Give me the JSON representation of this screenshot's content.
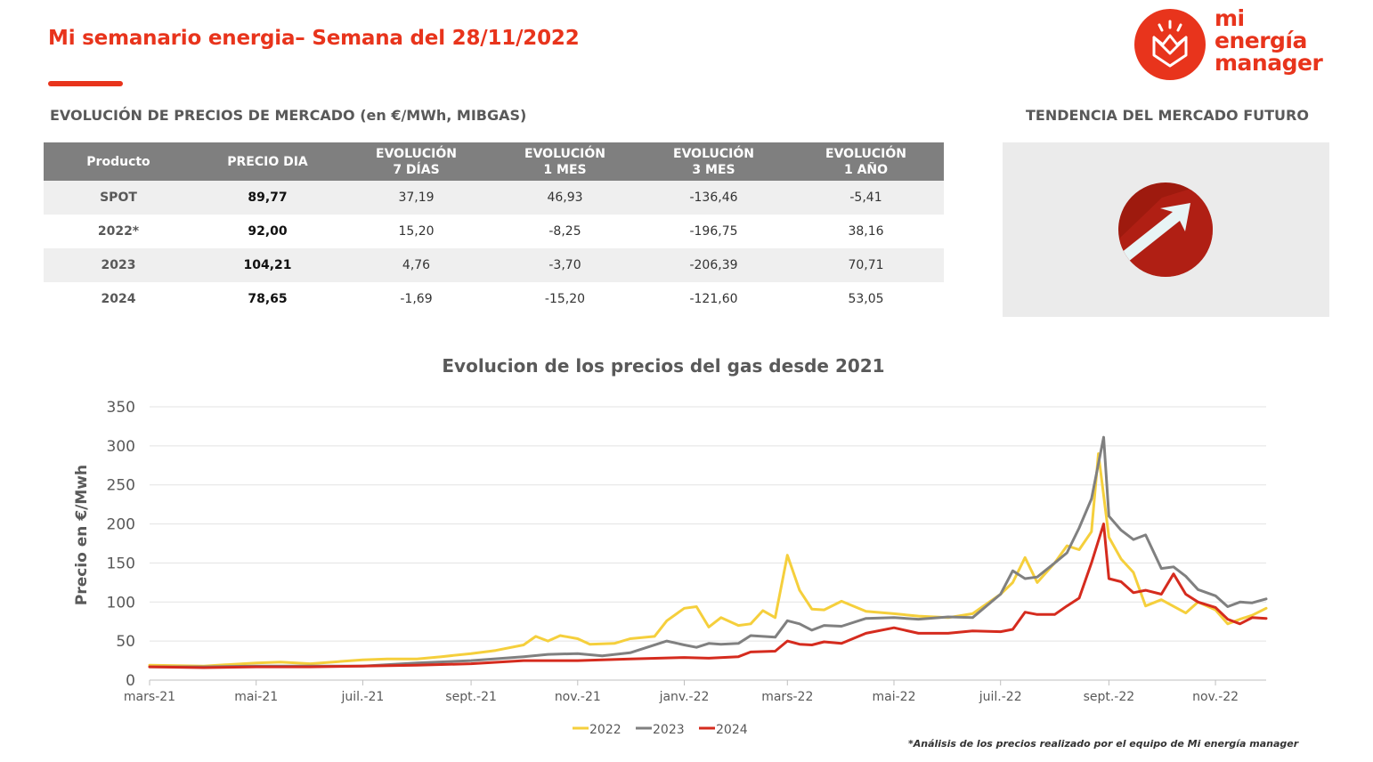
{
  "header": {
    "title": "Mi semanario energia– Semana del 28/11/2022",
    "logo_lines": [
      "mi",
      "energía",
      "manager"
    ]
  },
  "colors": {
    "accent": "#e8341c",
    "header_gray": "#7f7f7f",
    "trend_dark": "#9e1a0e",
    "trend_red": "#c0251a"
  },
  "market": {
    "title": "EVOLUCIÓN DE PRECIOS DE MERCADO (en €/MWh, MIBGAS)",
    "columns": [
      [
        "Producto",
        ""
      ],
      [
        "PRECIO DIA",
        ""
      ],
      [
        "EVOLUCIÓN",
        "7 DÍAS"
      ],
      [
        "EVOLUCIÓN",
        "1 MES"
      ],
      [
        "EVOLUCIÓN",
        "3 MES"
      ],
      [
        "EVOLUCIÓN",
        "1 AÑO"
      ]
    ],
    "rows": [
      [
        "SPOT",
        "89,77",
        "37,19",
        "46,93",
        "-136,46",
        "-5,41"
      ],
      [
        "2022*",
        "92,00",
        "15,20",
        "-8,25",
        "-196,75",
        "38,16"
      ],
      [
        "2023",
        "104,21",
        "4,76",
        "-3,70",
        "-206,39",
        "70,71"
      ],
      [
        "2024",
        "78,65",
        "-1,69",
        "-15,20",
        "-121,60",
        "53,05"
      ]
    ]
  },
  "future": {
    "title": "TENDENCIA DEL MERCADO FUTURO",
    "trend_icon": "arrow-up-right-icon"
  },
  "chart_data": {
    "type": "line",
    "title": "Evolucion de los precios del gas desde 2021",
    "xlabel": "",
    "ylabel": "Precio en €/Mwh",
    "ylim": [
      0,
      350
    ],
    "yticks": [
      0,
      50,
      100,
      150,
      200,
      250,
      300,
      350
    ],
    "xlim": [
      "2021-03-01",
      "2022-11-30"
    ],
    "xtick_labels": [
      [
        "2021-03-01",
        "mars-21"
      ],
      [
        "2021-05-01",
        "mai-21"
      ],
      [
        "2021-07-01",
        "juil.-21"
      ],
      [
        "2021-09-01",
        "sept.-21"
      ],
      [
        "2021-11-01",
        "nov.-21"
      ],
      [
        "2022-01-01",
        "janv.-22"
      ],
      [
        "2022-03-01",
        "mars-22"
      ],
      [
        "2022-05-01",
        "mai-22"
      ],
      [
        "2022-07-01",
        "juil.-22"
      ],
      [
        "2022-09-01",
        "sept.-22"
      ],
      [
        "2022-11-01",
        "nov.-22"
      ]
    ],
    "grid": "horizontal",
    "legend": "bottom-center",
    "series": [
      {
        "name": "2022",
        "color": "#f5cf3c",
        "points": [
          [
            "2021-03-01",
            19
          ],
          [
            "2021-04-01",
            18
          ],
          [
            "2021-05-01",
            22
          ],
          [
            "2021-05-15",
            23
          ],
          [
            "2021-06-01",
            21
          ],
          [
            "2021-07-01",
            26
          ],
          [
            "2021-07-15",
            27
          ],
          [
            "2021-08-01",
            27
          ],
          [
            "2021-08-15",
            30
          ],
          [
            "2021-09-01",
            34
          ],
          [
            "2021-09-15",
            38
          ],
          [
            "2021-10-01",
            45
          ],
          [
            "2021-10-08",
            56
          ],
          [
            "2021-10-15",
            50
          ],
          [
            "2021-10-22",
            57
          ],
          [
            "2021-11-01",
            53
          ],
          [
            "2021-11-08",
            46
          ],
          [
            "2021-11-22",
            47
          ],
          [
            "2021-12-01",
            53
          ],
          [
            "2021-12-15",
            56
          ],
          [
            "2021-12-22",
            76
          ],
          [
            "2022-01-01",
            92
          ],
          [
            "2022-01-08",
            94
          ],
          [
            "2022-01-15",
            68
          ],
          [
            "2022-01-22",
            80
          ],
          [
            "2022-02-01",
            70
          ],
          [
            "2022-02-08",
            72
          ],
          [
            "2022-02-15",
            89
          ],
          [
            "2022-02-22",
            80
          ],
          [
            "2022-03-01",
            160
          ],
          [
            "2022-03-08",
            115
          ],
          [
            "2022-03-15",
            91
          ],
          [
            "2022-03-22",
            90
          ],
          [
            "2022-04-01",
            101
          ],
          [
            "2022-04-15",
            88
          ],
          [
            "2022-05-01",
            85
          ],
          [
            "2022-05-15",
            82
          ],
          [
            "2022-06-01",
            80
          ],
          [
            "2022-06-15",
            85
          ],
          [
            "2022-07-01",
            110
          ],
          [
            "2022-07-08",
            125
          ],
          [
            "2022-07-15",
            157
          ],
          [
            "2022-07-22",
            125
          ],
          [
            "2022-08-01",
            150
          ],
          [
            "2022-08-08",
            172
          ],
          [
            "2022-08-15",
            167
          ],
          [
            "2022-08-22",
            190
          ],
          [
            "2022-08-26",
            290
          ],
          [
            "2022-09-01",
            183
          ],
          [
            "2022-09-08",
            155
          ],
          [
            "2022-09-15",
            138
          ],
          [
            "2022-09-22",
            95
          ],
          [
            "2022-10-01",
            103
          ],
          [
            "2022-10-15",
            86
          ],
          [
            "2022-10-22",
            100
          ],
          [
            "2022-11-01",
            90
          ],
          [
            "2022-11-08",
            72
          ],
          [
            "2022-11-15",
            78
          ],
          [
            "2022-11-22",
            83
          ],
          [
            "2022-11-30",
            92
          ]
        ]
      },
      {
        "name": "2023",
        "color": "#808080",
        "points": [
          [
            "2021-03-01",
            17
          ],
          [
            "2021-04-01",
            17
          ],
          [
            "2021-05-01",
            18
          ],
          [
            "2021-06-01",
            18
          ],
          [
            "2021-07-01",
            18
          ],
          [
            "2021-08-01",
            22
          ],
          [
            "2021-09-01",
            25
          ],
          [
            "2021-10-01",
            30
          ],
          [
            "2021-10-15",
            33
          ],
          [
            "2021-11-01",
            34
          ],
          [
            "2021-11-15",
            31
          ],
          [
            "2021-12-01",
            35
          ],
          [
            "2021-12-22",
            50
          ],
          [
            "2022-01-01",
            45
          ],
          [
            "2022-01-08",
            42
          ],
          [
            "2022-01-15",
            47
          ],
          [
            "2022-01-22",
            46
          ],
          [
            "2022-02-01",
            47
          ],
          [
            "2022-02-08",
            57
          ],
          [
            "2022-02-22",
            55
          ],
          [
            "2022-03-01",
            76
          ],
          [
            "2022-03-08",
            72
          ],
          [
            "2022-03-15",
            64
          ],
          [
            "2022-03-22",
            70
          ],
          [
            "2022-04-01",
            69
          ],
          [
            "2022-04-15",
            79
          ],
          [
            "2022-05-01",
            80
          ],
          [
            "2022-05-15",
            78
          ],
          [
            "2022-06-01",
            81
          ],
          [
            "2022-06-15",
            80
          ],
          [
            "2022-07-01",
            110
          ],
          [
            "2022-07-08",
            140
          ],
          [
            "2022-07-15",
            130
          ],
          [
            "2022-07-22",
            132
          ],
          [
            "2022-08-01",
            150
          ],
          [
            "2022-08-08",
            163
          ],
          [
            "2022-08-15",
            195
          ],
          [
            "2022-08-22",
            232
          ],
          [
            "2022-08-29",
            311
          ],
          [
            "2022-09-01",
            210
          ],
          [
            "2022-09-08",
            192
          ],
          [
            "2022-09-15",
            180
          ],
          [
            "2022-09-22",
            186
          ],
          [
            "2022-10-01",
            143
          ],
          [
            "2022-10-08",
            145
          ],
          [
            "2022-10-15",
            133
          ],
          [
            "2022-10-22",
            116
          ],
          [
            "2022-11-01",
            108
          ],
          [
            "2022-11-08",
            94
          ],
          [
            "2022-11-15",
            100
          ],
          [
            "2022-11-22",
            99
          ],
          [
            "2022-11-30",
            104
          ]
        ]
      },
      {
        "name": "2024",
        "color": "#d52b1e",
        "points": [
          [
            "2021-03-01",
            17
          ],
          [
            "2021-04-01",
            16
          ],
          [
            "2021-05-01",
            17
          ],
          [
            "2021-06-01",
            17
          ],
          [
            "2021-07-01",
            18
          ],
          [
            "2021-08-01",
            19
          ],
          [
            "2021-09-01",
            21
          ],
          [
            "2021-10-01",
            25
          ],
          [
            "2021-11-01",
            25
          ],
          [
            "2021-12-01",
            27
          ],
          [
            "2022-01-01",
            29
          ],
          [
            "2022-01-15",
            28
          ],
          [
            "2022-02-01",
            30
          ],
          [
            "2022-02-08",
            36
          ],
          [
            "2022-02-22",
            37
          ],
          [
            "2022-03-01",
            50
          ],
          [
            "2022-03-08",
            46
          ],
          [
            "2022-03-15",
            45
          ],
          [
            "2022-03-22",
            49
          ],
          [
            "2022-04-01",
            47
          ],
          [
            "2022-04-15",
            60
          ],
          [
            "2022-05-01",
            67
          ],
          [
            "2022-05-15",
            60
          ],
          [
            "2022-06-01",
            60
          ],
          [
            "2022-06-15",
            63
          ],
          [
            "2022-07-01",
            62
          ],
          [
            "2022-07-08",
            65
          ],
          [
            "2022-07-15",
            87
          ],
          [
            "2022-07-22",
            84
          ],
          [
            "2022-08-01",
            84
          ],
          [
            "2022-08-08",
            95
          ],
          [
            "2022-08-15",
            105
          ],
          [
            "2022-08-22",
            150
          ],
          [
            "2022-08-29",
            200
          ],
          [
            "2022-09-01",
            130
          ],
          [
            "2022-09-08",
            126
          ],
          [
            "2022-09-15",
            112
          ],
          [
            "2022-09-22",
            115
          ],
          [
            "2022-10-01",
            110
          ],
          [
            "2022-10-08",
            136
          ],
          [
            "2022-10-15",
            110
          ],
          [
            "2022-10-22",
            100
          ],
          [
            "2022-11-01",
            93
          ],
          [
            "2022-11-08",
            78
          ],
          [
            "2022-11-15",
            72
          ],
          [
            "2022-11-22",
            80
          ],
          [
            "2022-11-30",
            79
          ]
        ]
      }
    ]
  },
  "footnote": "*Análisis de los precios realizado por el equipo de Mi energía manager"
}
